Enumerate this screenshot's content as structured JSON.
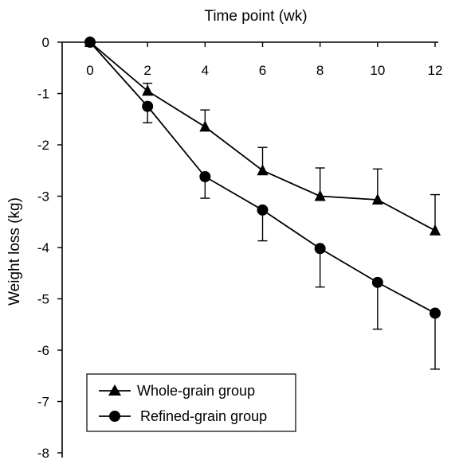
{
  "chart_data": {
    "type": "line",
    "xlabel": "Time point (wk)",
    "ylabel": "Weight loss (kg)",
    "x": [
      0,
      2,
      4,
      6,
      8,
      10,
      12
    ],
    "x_ticks": [
      "0",
      "2",
      "4",
      "6",
      "8",
      "10",
      "12"
    ],
    "y_ticks": [
      "0",
      "-1",
      "-2",
      "-3",
      "-4",
      "-5",
      "-6",
      "-7",
      "-8"
    ],
    "xlim": [
      0,
      12
    ],
    "ylim": [
      -8,
      0
    ],
    "x_axis_position": "top",
    "grid": false,
    "legend_position": "bottom-left",
    "series": [
      {
        "name": "Whole-grain group",
        "marker": "triangle",
        "values": [
          0,
          -0.95,
          -1.65,
          -2.5,
          -3.0,
          -3.07,
          -3.67
        ],
        "error_low": [
          0,
          -0.8,
          -1.32,
          -2.05,
          -2.45,
          -2.47,
          -2.97
        ]
      },
      {
        "name": "Refined-grain group",
        "marker": "circle",
        "values": [
          0,
          -1.25,
          -2.62,
          -3.27,
          -4.02,
          -4.68,
          -5.28
        ],
        "error_high": [
          0,
          -1.57,
          -3.04,
          -3.87,
          -4.77,
          -5.59,
          -6.37
        ]
      }
    ],
    "line_color": "#000000"
  }
}
